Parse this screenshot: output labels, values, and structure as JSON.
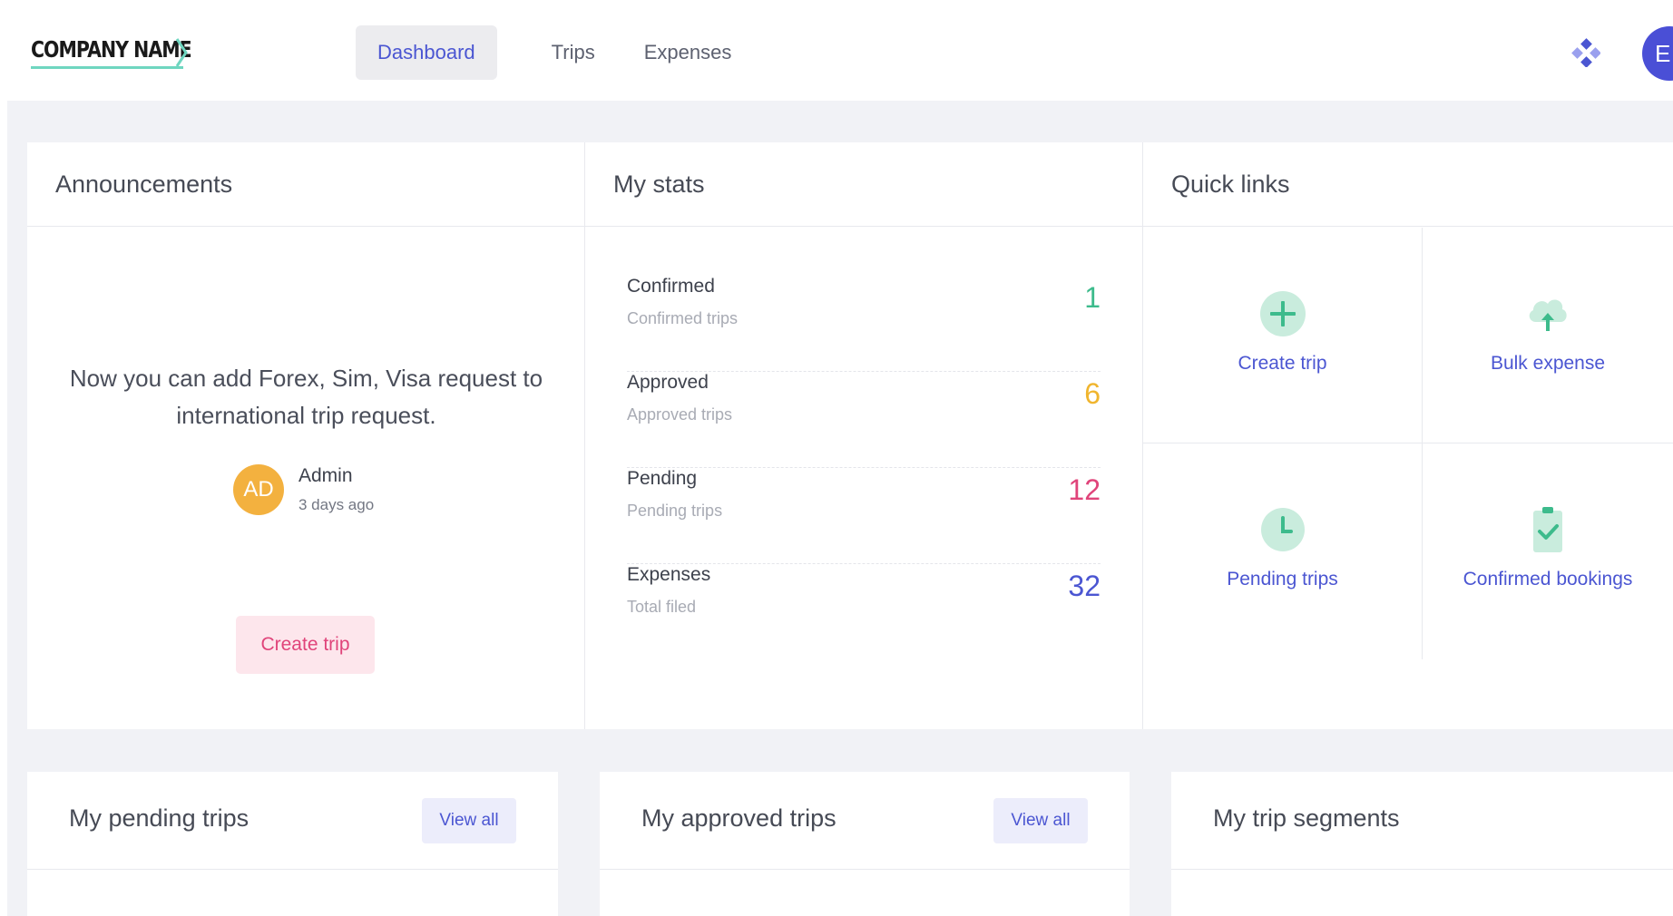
{
  "header": {
    "logo_text": "COMPANY NAME",
    "nav": [
      {
        "label": "Dashboard",
        "active": true
      },
      {
        "label": "Trips",
        "active": false
      },
      {
        "label": "Expenses",
        "active": false
      }
    ],
    "apps_icon": "apps-grid-icon",
    "user_initials": "E"
  },
  "announcements": {
    "title": "Announcements",
    "message": "Now you can add Forex, Sim, Visa request to international trip request.",
    "author_initials": "AD",
    "author_name": "Admin",
    "time": "3 days ago",
    "button_label": "Create trip"
  },
  "stats": {
    "title": "My stats",
    "rows": [
      {
        "label": "Confirmed",
        "sub": "Confirmed trips",
        "value": "1",
        "color": "#3dbb8c"
      },
      {
        "label": "Approved",
        "sub": "Approved trips",
        "value": "6",
        "color": "#f0b52e"
      },
      {
        "label": "Pending",
        "sub": "Pending trips",
        "value": "12",
        "color": "#e0447a"
      },
      {
        "label": "Expenses",
        "sub": "Total filed",
        "value": "32",
        "color": "#4b56d2"
      }
    ]
  },
  "quick_links": {
    "title": "Quick links",
    "items": [
      {
        "label": "Create trip",
        "icon": "plus-circle-icon"
      },
      {
        "label": "Bulk expense",
        "icon": "cloud-upload-icon"
      },
      {
        "label": "Pending trips",
        "icon": "clock-icon"
      },
      {
        "label": "Confirmed bookings",
        "icon": "clipboard-check-icon"
      }
    ]
  },
  "bottom_cards": [
    {
      "title": "My pending trips",
      "button": "View all"
    },
    {
      "title": "My approved trips",
      "button": "View all"
    },
    {
      "title": "My trip segments"
    }
  ],
  "colors": {
    "accent": "#4b56d2",
    "green": "#3dbb8c",
    "icon_green_bg": "#c9ecdd",
    "pink": "#e0447a",
    "amber": "#f3b13f"
  }
}
